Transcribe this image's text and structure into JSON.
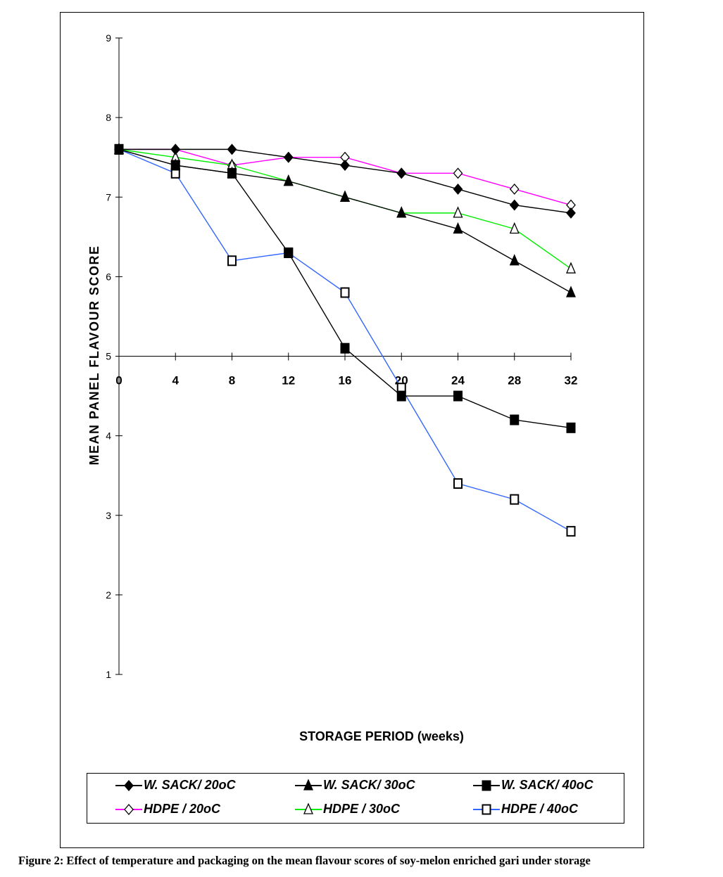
{
  "chart_data": {
    "type": "line",
    "title": "",
    "xlabel": "STORAGE PERIOD (weeks)",
    "ylabel": "MEAN PANEL FLAVOUR SCORE",
    "x": [
      0,
      4,
      8,
      12,
      16,
      20,
      24,
      28,
      32
    ],
    "xticks": [
      "0",
      "4",
      "8",
      "12",
      "16",
      "20",
      "24",
      "28",
      "32"
    ],
    "yticks": [
      "1",
      "2",
      "3",
      "4",
      "5",
      "6",
      "7",
      "8",
      "9"
    ],
    "ylim": [
      1,
      9
    ],
    "xlim": [
      0,
      32
    ],
    "x_axis_crosses_at": 5,
    "legend_position": "bottom",
    "series": [
      {
        "name": "W. SACK/ 20oC",
        "color": "#000000",
        "marker": "diamond-filled",
        "values": [
          7.6,
          7.6,
          7.6,
          7.5,
          7.4,
          7.3,
          7.1,
          6.9,
          6.8
        ]
      },
      {
        "name": "W. SACK/ 30oC",
        "color": "#000000",
        "marker": "triangle-filled",
        "values": [
          7.6,
          7.4,
          7.3,
          7.2,
          7.0,
          6.8,
          6.6,
          6.2,
          5.8
        ]
      },
      {
        "name": "W. SACK/ 40oC",
        "color": "#000000",
        "marker": "square-filled",
        "values": [
          7.6,
          7.4,
          7.3,
          6.3,
          5.1,
          4.5,
          4.5,
          4.2,
          4.1
        ]
      },
      {
        "name": "HDPE / 20oC",
        "color": "#ff00ff",
        "marker": "diamond-open",
        "values": [
          7.6,
          7.6,
          7.4,
          7.5,
          7.5,
          7.3,
          7.3,
          7.1,
          6.9
        ]
      },
      {
        "name": "HDPE / 30oC",
        "color": "#00ee00",
        "marker": "triangle-open",
        "values": [
          7.6,
          7.5,
          7.4,
          7.2,
          7.0,
          6.8,
          6.8,
          6.6,
          6.1
        ]
      },
      {
        "name": "HDPE / 40oC",
        "color": "#3366ff",
        "marker": "square-open",
        "values": [
          7.6,
          7.3,
          6.2,
          6.3,
          5.8,
          4.6,
          3.4,
          3.2,
          2.8
        ]
      }
    ]
  },
  "caption": "Figure 2: Effect of temperature and packaging on the mean flavour scores of soy-melon enriched  gari under storage"
}
